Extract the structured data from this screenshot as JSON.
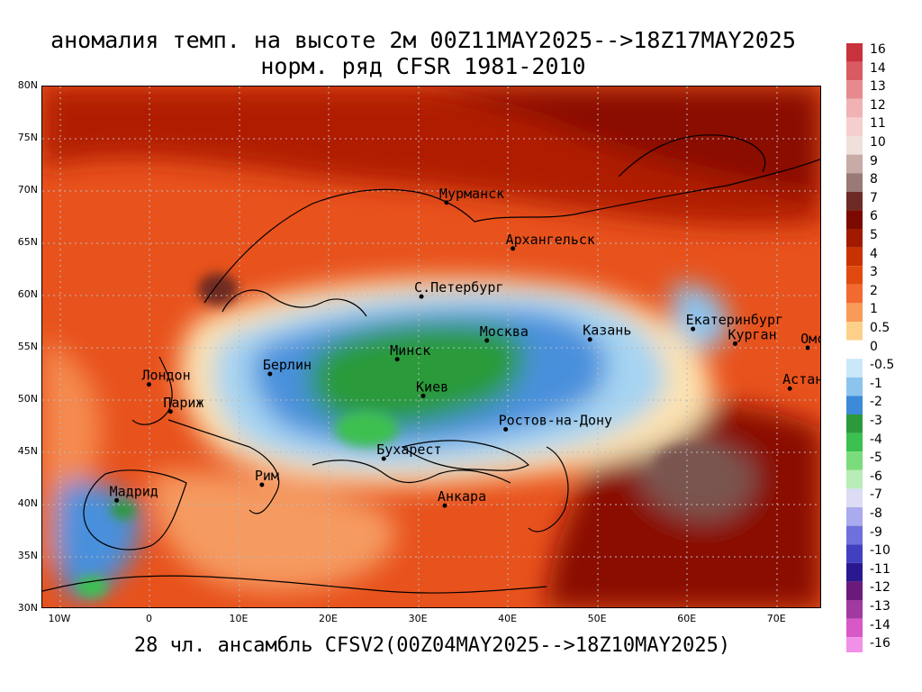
{
  "title_line1": "аномалия темп. на высоте 2м 00Z11MAY2025-->18Z17MAY2025",
  "title_line2": "норм. ряд CFSR 1981-2010",
  "bottom_caption": "28 чл. ансамбль CFSV2(00Z04MAY2025-->18Z10MAY2025)",
  "map": {
    "lon_range": [
      -12,
      75
    ],
    "lat_range": [
      30,
      80
    ],
    "lat_ticks": [
      "80N",
      "75N",
      "70N",
      "65N",
      "60N",
      "55N",
      "50N",
      "45N",
      "40N",
      "35N",
      "30N"
    ],
    "lon_ticks": [
      "10W",
      "0",
      "10E",
      "20E",
      "30E",
      "40E",
      "50E",
      "60E",
      "70E"
    ],
    "cities": [
      {
        "name": "Мурманск",
        "lon": 33.1,
        "lat": 68.9
      },
      {
        "name": "Архангельск",
        "lon": 40.5,
        "lat": 64.5
      },
      {
        "name": "С.Петербург",
        "lon": 30.3,
        "lat": 59.9
      },
      {
        "name": "Москва",
        "lon": 37.6,
        "lat": 55.7
      },
      {
        "name": "Казань",
        "lon": 49.1,
        "lat": 55.8
      },
      {
        "name": "Екатеринбург",
        "lon": 60.6,
        "lat": 56.8
      },
      {
        "name": "Курган",
        "lon": 65.3,
        "lat": 55.4
      },
      {
        "name": "Омск",
        "lon": 73.4,
        "lat": 55.0
      },
      {
        "name": "Астана",
        "lon": 71.4,
        "lat": 51.1
      },
      {
        "name": "Минск",
        "lon": 27.6,
        "lat": 53.9
      },
      {
        "name": "Киев",
        "lon": 30.5,
        "lat": 50.4
      },
      {
        "name": "Берлин",
        "lon": 13.4,
        "lat": 52.5
      },
      {
        "name": "Лондон",
        "lon": -0.1,
        "lat": 51.5
      },
      {
        "name": "Париж",
        "lon": 2.3,
        "lat": 48.9
      },
      {
        "name": "Ростов-на-Дону",
        "lon": 39.7,
        "lat": 47.2
      },
      {
        "name": "Бухарест",
        "lon": 26.1,
        "lat": 44.4
      },
      {
        "name": "Рим",
        "lon": 12.5,
        "lat": 41.9
      },
      {
        "name": "Мадрид",
        "lon": -3.7,
        "lat": 40.4
      },
      {
        "name": "Анкара",
        "lon": 32.9,
        "lat": 39.9
      }
    ]
  },
  "colorbar": {
    "labels": [
      "16",
      "14",
      "13",
      "12",
      "11",
      "10",
      "9",
      "8",
      "7",
      "6",
      "5",
      "4",
      "3",
      "2",
      "1",
      "0.5",
      "0",
      "-0.5",
      "-1",
      "-2",
      "-3",
      "-4",
      "-5",
      "-6",
      "-7",
      "-8",
      "-9",
      "-10",
      "-11",
      "-12",
      "-13",
      "-14",
      "-16"
    ],
    "colors": [
      "#c8323c",
      "#d95a62",
      "#e68a8e",
      "#f0b2b4",
      "#f5cfcf",
      "#efe0dc",
      "#c8aaa6",
      "#9a7a76",
      "#6e2a24",
      "#7a0a00",
      "#a01a00",
      "#c83200",
      "#e04a10",
      "#f26a30",
      "#f89a58",
      "#fdd08a",
      "#ffffff",
      "#cbe8f8",
      "#8cc4ee",
      "#3c8ad8",
      "#2a9a3a",
      "#3cc050",
      "#7adc7a",
      "#b8ecb8",
      "#dcdcf4",
      "#aaaaee",
      "#7070dc",
      "#4040c0",
      "#2a1890",
      "#6a1a7a",
      "#a03aa0",
      "#d858c8",
      "#f090e6"
    ]
  }
}
